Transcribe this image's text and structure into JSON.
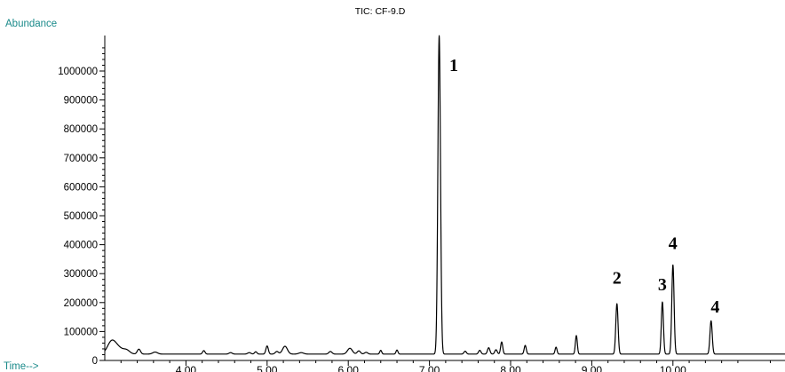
{
  "chart_data": {
    "type": "line",
    "title": "TIC: CF-9.D",
    "ylabel": "Abundance",
    "xlabel": "Time-->",
    "xlim": [
      3.0,
      11.4
    ],
    "ylim": [
      0,
      1100000
    ],
    "x_ticks": [
      {
        "value": 4.0,
        "label": "4.00"
      },
      {
        "value": 5.0,
        "label": "5.00"
      },
      {
        "value": 6.0,
        "label": "6.00"
      },
      {
        "value": 7.0,
        "label": "7.00"
      },
      {
        "value": 8.0,
        "label": "8.00"
      },
      {
        "value": 9.0,
        "label": "9.00"
      },
      {
        "value": 10.0,
        "label": "10.00"
      }
    ],
    "y_ticks": [
      {
        "value": 0,
        "label": "0"
      },
      {
        "value": 100000,
        "label": "100000"
      },
      {
        "value": 200000,
        "label": "200000"
      },
      {
        "value": 300000,
        "label": "300000"
      },
      {
        "value": 400000,
        "label": "400000"
      },
      {
        "value": 500000,
        "label": "500000"
      },
      {
        "value": 600000,
        "label": "600000"
      },
      {
        "value": 700000,
        "label": "700000"
      },
      {
        "value": 800000,
        "label": "800000"
      },
      {
        "value": 900000,
        "label": "900000"
      },
      {
        "value": 1000000,
        "label": "1000000"
      }
    ],
    "baseline": 22000,
    "peaks": [
      {
        "t": 3.08,
        "h": 38000,
        "w": 0.05
      },
      {
        "t": 3.16,
        "h": 22000,
        "w": 0.06
      },
      {
        "t": 3.27,
        "h": 12000,
        "w": 0.04
      },
      {
        "t": 3.42,
        "h": 17000,
        "w": 0.02
      },
      {
        "t": 3.62,
        "h": 7000,
        "w": 0.03
      },
      {
        "t": 4.22,
        "h": 12000,
        "w": 0.015
      },
      {
        "t": 4.55,
        "h": 5000,
        "w": 0.02
      },
      {
        "t": 4.78,
        "h": 5000,
        "w": 0.02
      },
      {
        "t": 4.86,
        "h": 8000,
        "w": 0.015
      },
      {
        "t": 5.0,
        "h": 28000,
        "w": 0.015
      },
      {
        "t": 5.12,
        "h": 9000,
        "w": 0.02
      },
      {
        "t": 5.22,
        "h": 27000,
        "w": 0.03
      },
      {
        "t": 5.42,
        "h": 5000,
        "w": 0.03
      },
      {
        "t": 5.78,
        "h": 9000,
        "w": 0.02
      },
      {
        "t": 6.02,
        "h": 20000,
        "w": 0.03
      },
      {
        "t": 6.13,
        "h": 11000,
        "w": 0.02
      },
      {
        "t": 6.22,
        "h": 6000,
        "w": 0.02
      },
      {
        "t": 6.4,
        "h": 13000,
        "w": 0.012
      },
      {
        "t": 6.6,
        "h": 14000,
        "w": 0.012
      },
      {
        "t": 7.12,
        "h": 1100000,
        "w": 0.016
      },
      {
        "t": 7.44,
        "h": 10000,
        "w": 0.015
      },
      {
        "t": 7.62,
        "h": 13000,
        "w": 0.015
      },
      {
        "t": 7.73,
        "h": 22000,
        "w": 0.015
      },
      {
        "t": 7.82,
        "h": 15000,
        "w": 0.015
      },
      {
        "t": 7.89,
        "h": 42000,
        "w": 0.013
      },
      {
        "t": 8.18,
        "h": 30000,
        "w": 0.013
      },
      {
        "t": 8.56,
        "h": 24000,
        "w": 0.012
      },
      {
        "t": 8.81,
        "h": 64000,
        "w": 0.012
      },
      {
        "t": 9.31,
        "h": 174000,
        "w": 0.014
      },
      {
        "t": 9.87,
        "h": 180000,
        "w": 0.013
      },
      {
        "t": 10.0,
        "h": 308000,
        "w": 0.014
      },
      {
        "t": 10.47,
        "h": 115000,
        "w": 0.014
      }
    ],
    "annotations": [
      {
        "text": "1",
        "x": 7.3,
        "y": 1000000
      },
      {
        "text": "2",
        "x": 9.31,
        "y": 265000
      },
      {
        "text": "3",
        "x": 9.87,
        "y": 243000
      },
      {
        "text": "4",
        "x": 10.0,
        "y": 385000
      },
      {
        "text": "4",
        "x": 10.52,
        "y": 165000
      }
    ]
  }
}
